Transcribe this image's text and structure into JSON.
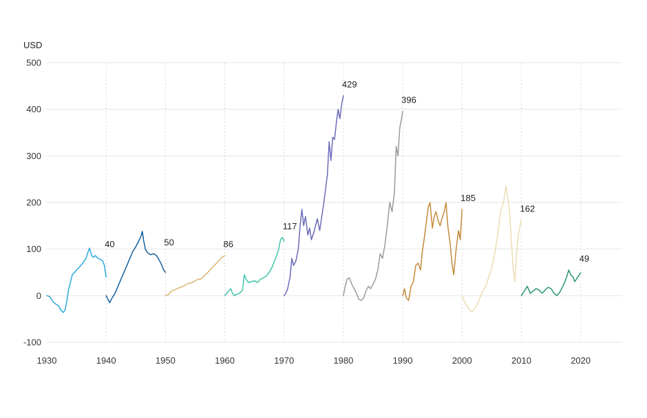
{
  "chart_data": {
    "type": "line",
    "ylabel": "USD",
    "ylim": [
      -100,
      500
    ],
    "xlim": [
      1930,
      2027
    ],
    "y_ticks": [
      -100,
      0,
      100,
      200,
      300,
      400,
      500
    ],
    "x_ticks": [
      1930,
      1940,
      1950,
      1960,
      1970,
      1980,
      1990,
      2000,
      2010,
      2020
    ],
    "grid": {
      "horizontal": true,
      "vertical_dotted": true
    },
    "series": [
      {
        "end_label": "40",
        "color": "#2aa7dc",
        "points": [
          [
            1930,
            0
          ],
          [
            1930.5,
            -2
          ],
          [
            1931,
            -12
          ],
          [
            1931.5,
            -18
          ],
          [
            1932,
            -22
          ],
          [
            1932.4,
            -32
          ],
          [
            1932.8,
            -36
          ],
          [
            1933.1,
            -30
          ],
          [
            1933.4,
            -10
          ],
          [
            1933.7,
            15
          ],
          [
            1934,
            30
          ],
          [
            1934.3,
            45
          ],
          [
            1934.7,
            50
          ],
          [
            1935,
            55
          ],
          [
            1935.4,
            60
          ],
          [
            1935.8,
            66
          ],
          [
            1936.2,
            72
          ],
          [
            1936.6,
            80
          ],
          [
            1937,
            95
          ],
          [
            1937.2,
            102
          ],
          [
            1937.5,
            88
          ],
          [
            1937.8,
            82
          ],
          [
            1938.2,
            86
          ],
          [
            1938.6,
            80
          ],
          [
            1939,
            78
          ],
          [
            1939.4,
            75
          ],
          [
            1939.7,
            65
          ],
          [
            1940,
            40
          ]
        ]
      },
      {
        "end_label": "50",
        "color": "#155e9c",
        "points": [
          [
            1940,
            0
          ],
          [
            1940.3,
            -8
          ],
          [
            1940.6,
            -15
          ],
          [
            1941,
            -5
          ],
          [
            1941.5,
            5
          ],
          [
            1942,
            20
          ],
          [
            1942.5,
            35
          ],
          [
            1943,
            50
          ],
          [
            1943.5,
            65
          ],
          [
            1944,
            80
          ],
          [
            1944.5,
            95
          ],
          [
            1945,
            105
          ],
          [
            1945.4,
            115
          ],
          [
            1945.8,
            125
          ],
          [
            1946.1,
            138
          ],
          [
            1946.3,
            120
          ],
          [
            1946.6,
            100
          ],
          [
            1947,
            92
          ],
          [
            1947.5,
            88
          ],
          [
            1948,
            90
          ],
          [
            1948.5,
            86
          ],
          [
            1949,
            75
          ],
          [
            1949.4,
            65
          ],
          [
            1949.7,
            55
          ],
          [
            1950,
            50
          ]
        ]
      },
      {
        "end_label": "86",
        "color": "#d9b76a",
        "points": [
          [
            1950,
            0
          ],
          [
            1950.5,
            2
          ],
          [
            1951,
            10
          ],
          [
            1951.5,
            12
          ],
          [
            1952,
            15
          ],
          [
            1952.5,
            18
          ],
          [
            1953,
            20
          ],
          [
            1953.5,
            24
          ],
          [
            1954,
            27
          ],
          [
            1954.5,
            28
          ],
          [
            1955,
            32
          ],
          [
            1955.5,
            35
          ],
          [
            1956,
            36
          ],
          [
            1956.5,
            42
          ],
          [
            1957,
            48
          ],
          [
            1957.5,
            55
          ],
          [
            1958,
            62
          ],
          [
            1958.5,
            68
          ],
          [
            1959,
            75
          ],
          [
            1959.5,
            82
          ],
          [
            1960,
            86
          ]
        ]
      },
      {
        "end_label": "117",
        "color": "#3fc5a9",
        "points": [
          [
            1960,
            0
          ],
          [
            1960.5,
            8
          ],
          [
            1961,
            15
          ],
          [
            1961.3,
            5
          ],
          [
            1961.6,
            0
          ],
          [
            1962,
            3
          ],
          [
            1962.5,
            5
          ],
          [
            1963,
            12
          ],
          [
            1963.3,
            45
          ],
          [
            1963.6,
            35
          ],
          [
            1964,
            28
          ],
          [
            1964.5,
            30
          ],
          [
            1965,
            32
          ],
          [
            1965.5,
            28
          ],
          [
            1966,
            35
          ],
          [
            1966.5,
            38
          ],
          [
            1967,
            42
          ],
          [
            1967.5,
            50
          ],
          [
            1968,
            62
          ],
          [
            1968.5,
            78
          ],
          [
            1969,
            95
          ],
          [
            1969.4,
            120
          ],
          [
            1969.7,
            125
          ],
          [
            1970,
            117
          ]
        ]
      },
      {
        "end_label": "429",
        "color": "#6a6ab8",
        "points": [
          [
            1970,
            0
          ],
          [
            1970.3,
            5
          ],
          [
            1970.6,
            15
          ],
          [
            1971,
            40
          ],
          [
            1971.3,
            80
          ],
          [
            1971.6,
            65
          ],
          [
            1972,
            75
          ],
          [
            1972.4,
            100
          ],
          [
            1972.7,
            150
          ],
          [
            1973,
            185
          ],
          [
            1973.3,
            150
          ],
          [
            1973.6,
            170
          ],
          [
            1974,
            130
          ],
          [
            1974.3,
            145
          ],
          [
            1974.6,
            120
          ],
          [
            1975,
            135
          ],
          [
            1975.3,
            150
          ],
          [
            1975.6,
            165
          ],
          [
            1976,
            140
          ],
          [
            1976.3,
            165
          ],
          [
            1976.6,
            190
          ],
          [
            1977,
            230
          ],
          [
            1977.3,
            260
          ],
          [
            1977.6,
            330
          ],
          [
            1977.9,
            290
          ],
          [
            1978.2,
            340
          ],
          [
            1978.5,
            335
          ],
          [
            1978.8,
            370
          ],
          [
            1979.1,
            400
          ],
          [
            1979.4,
            380
          ],
          [
            1979.7,
            410
          ],
          [
            1980,
            429
          ]
        ]
      },
      {
        "end_label": "396",
        "color": "#9a9a9a",
        "points": [
          [
            1980,
            0
          ],
          [
            1980.3,
            20
          ],
          [
            1980.6,
            35
          ],
          [
            1981,
            38
          ],
          [
            1981.4,
            25
          ],
          [
            1981.8,
            15
          ],
          [
            1982.2,
            5
          ],
          [
            1982.6,
            -8
          ],
          [
            1983,
            -10
          ],
          [
            1983.4,
            -5
          ],
          [
            1983.8,
            10
          ],
          [
            1984.2,
            20
          ],
          [
            1984.6,
            15
          ],
          [
            1985,
            25
          ],
          [
            1985.4,
            35
          ],
          [
            1985.8,
            55
          ],
          [
            1986.2,
            90
          ],
          [
            1986.6,
            80
          ],
          [
            1987,
            110
          ],
          [
            1987.4,
            150
          ],
          [
            1987.8,
            200
          ],
          [
            1988.2,
            180
          ],
          [
            1988.6,
            220
          ],
          [
            1988.9,
            320
          ],
          [
            1989.2,
            300
          ],
          [
            1989.5,
            360
          ],
          [
            1989.8,
            380
          ],
          [
            1990,
            396
          ]
        ]
      },
      {
        "end_label": "185",
        "color": "#c4893a",
        "points": [
          [
            1990,
            0
          ],
          [
            1990.3,
            15
          ],
          [
            1990.6,
            -5
          ],
          [
            1991,
            -10
          ],
          [
            1991.4,
            20
          ],
          [
            1991.8,
            30
          ],
          [
            1992.2,
            65
          ],
          [
            1992.6,
            70
          ],
          [
            1993,
            55
          ],
          [
            1993.3,
            95
          ],
          [
            1993.6,
            120
          ],
          [
            1994,
            160
          ],
          [
            1994.3,
            190
          ],
          [
            1994.6,
            200
          ],
          [
            1995,
            145
          ],
          [
            1995.3,
            170
          ],
          [
            1995.6,
            180
          ],
          [
            1996,
            160
          ],
          [
            1996.3,
            150
          ],
          [
            1996.6,
            165
          ],
          [
            1997,
            180
          ],
          [
            1997.3,
            200
          ],
          [
            1997.6,
            150
          ],
          [
            1998,
            110
          ],
          [
            1998.3,
            70
          ],
          [
            1998.6,
            45
          ],
          [
            1999,
            100
          ],
          [
            1999.4,
            140
          ],
          [
            1999.7,
            120
          ],
          [
            2000,
            185
          ]
        ]
      },
      {
        "end_label": "162",
        "color": "#ecdcb2",
        "points": [
          [
            2000,
            0
          ],
          [
            2000.5,
            -15
          ],
          [
            2001,
            -25
          ],
          [
            2001.5,
            -35
          ],
          [
            2002,
            -30
          ],
          [
            2002.5,
            -20
          ],
          [
            2003,
            -5
          ],
          [
            2003.5,
            10
          ],
          [
            2004,
            20
          ],
          [
            2004.5,
            40
          ],
          [
            2005,
            60
          ],
          [
            2005.5,
            90
          ],
          [
            2006,
            130
          ],
          [
            2006.5,
            180
          ],
          [
            2007,
            200
          ],
          [
            2007.4,
            235
          ],
          [
            2007.7,
            210
          ],
          [
            2008,
            180
          ],
          [
            2008.3,
            120
          ],
          [
            2008.6,
            60
          ],
          [
            2008.9,
            30
          ],
          [
            2009.3,
            110
          ],
          [
            2009.6,
            140
          ],
          [
            2010,
            162
          ]
        ]
      },
      {
        "end_label": "49",
        "color": "#2a9474",
        "points": [
          [
            2010,
            0
          ],
          [
            2010.5,
            10
          ],
          [
            2011,
            20
          ],
          [
            2011.5,
            5
          ],
          [
            2012,
            10
          ],
          [
            2012.5,
            15
          ],
          [
            2013,
            12
          ],
          [
            2013.5,
            5
          ],
          [
            2014,
            12
          ],
          [
            2014.5,
            18
          ],
          [
            2015,
            15
          ],
          [
            2015.5,
            5
          ],
          [
            2016,
            0
          ],
          [
            2016.5,
            8
          ],
          [
            2017,
            20
          ],
          [
            2017.5,
            35
          ],
          [
            2018,
            55
          ],
          [
            2018.3,
            45
          ],
          [
            2018.7,
            40
          ],
          [
            2019,
            30
          ],
          [
            2019.5,
            40
          ],
          [
            2020,
            49
          ]
        ]
      }
    ]
  }
}
